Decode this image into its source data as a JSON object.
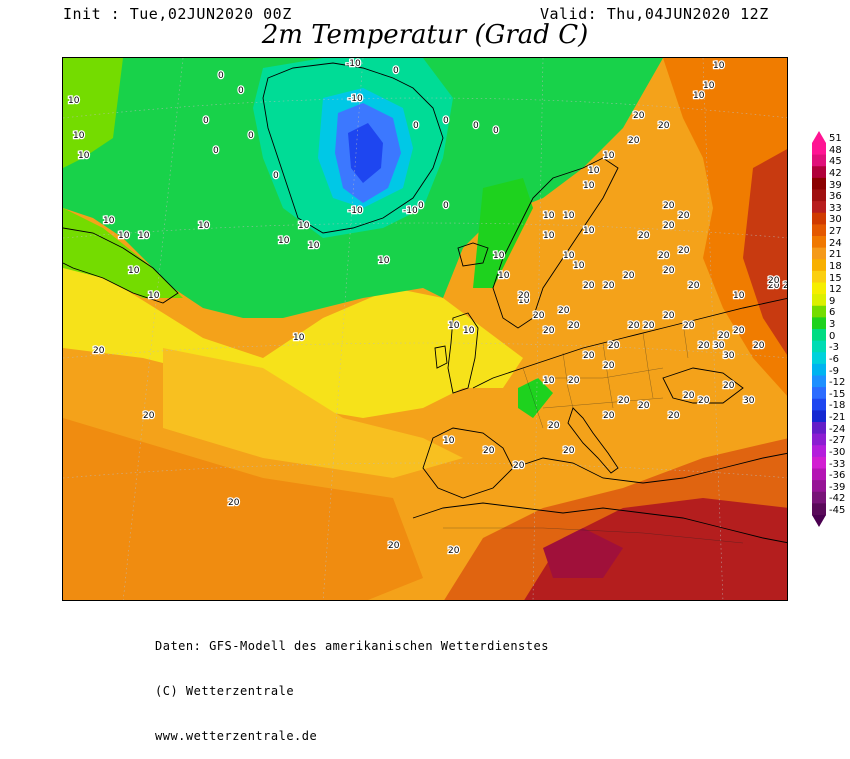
{
  "header": {
    "init": "Init : Tue,02JUN2020 00Z",
    "valid": "Valid: Thu,04JUN2020 12Z",
    "title": "2m Temperatur (Grad C)"
  },
  "map": {
    "isotherm_labels": [
      "-10",
      "0",
      "10",
      "20",
      "30"
    ]
  },
  "colorbar": {
    "ticks": [
      "51",
      "48",
      "45",
      "42",
      "39",
      "36",
      "33",
      "30",
      "27",
      "24",
      "21",
      "18",
      "15",
      "12",
      "9",
      "6",
      "3",
      "0",
      "-3",
      "-6",
      "-9",
      "-12",
      "-15",
      "-18",
      "-21",
      "-24",
      "-27",
      "-30",
      "-33",
      "-36",
      "-39",
      "-42",
      "-45"
    ],
    "colors": [
      "#ff1493",
      "#e0107a",
      "#b0003a",
      "#8b0000",
      "#a01010",
      "#b81e1e",
      "#d03a00",
      "#e45800",
      "#f07800",
      "#f59a1a",
      "#f8b000",
      "#fbcf10",
      "#f6ee00",
      "#dcf000",
      "#74dc00",
      "#1ed21e",
      "#00dc82",
      "#00dcb4",
      "#00d2dc",
      "#00b4f0",
      "#1e90ff",
      "#2c6cff",
      "#1e46f0",
      "#1428d2",
      "#641ec8",
      "#8c1ed2",
      "#b41edc",
      "#d21ed2",
      "#b414b4",
      "#961496",
      "#781478",
      "#5a0a5a"
    ]
  },
  "footer": {
    "line1": "Daten: GFS-Modell des amerikanischen Wetterdienstes",
    "line2": "(C) Wetterzentrale",
    "line3": "www.wetterzentrale.de"
  }
}
